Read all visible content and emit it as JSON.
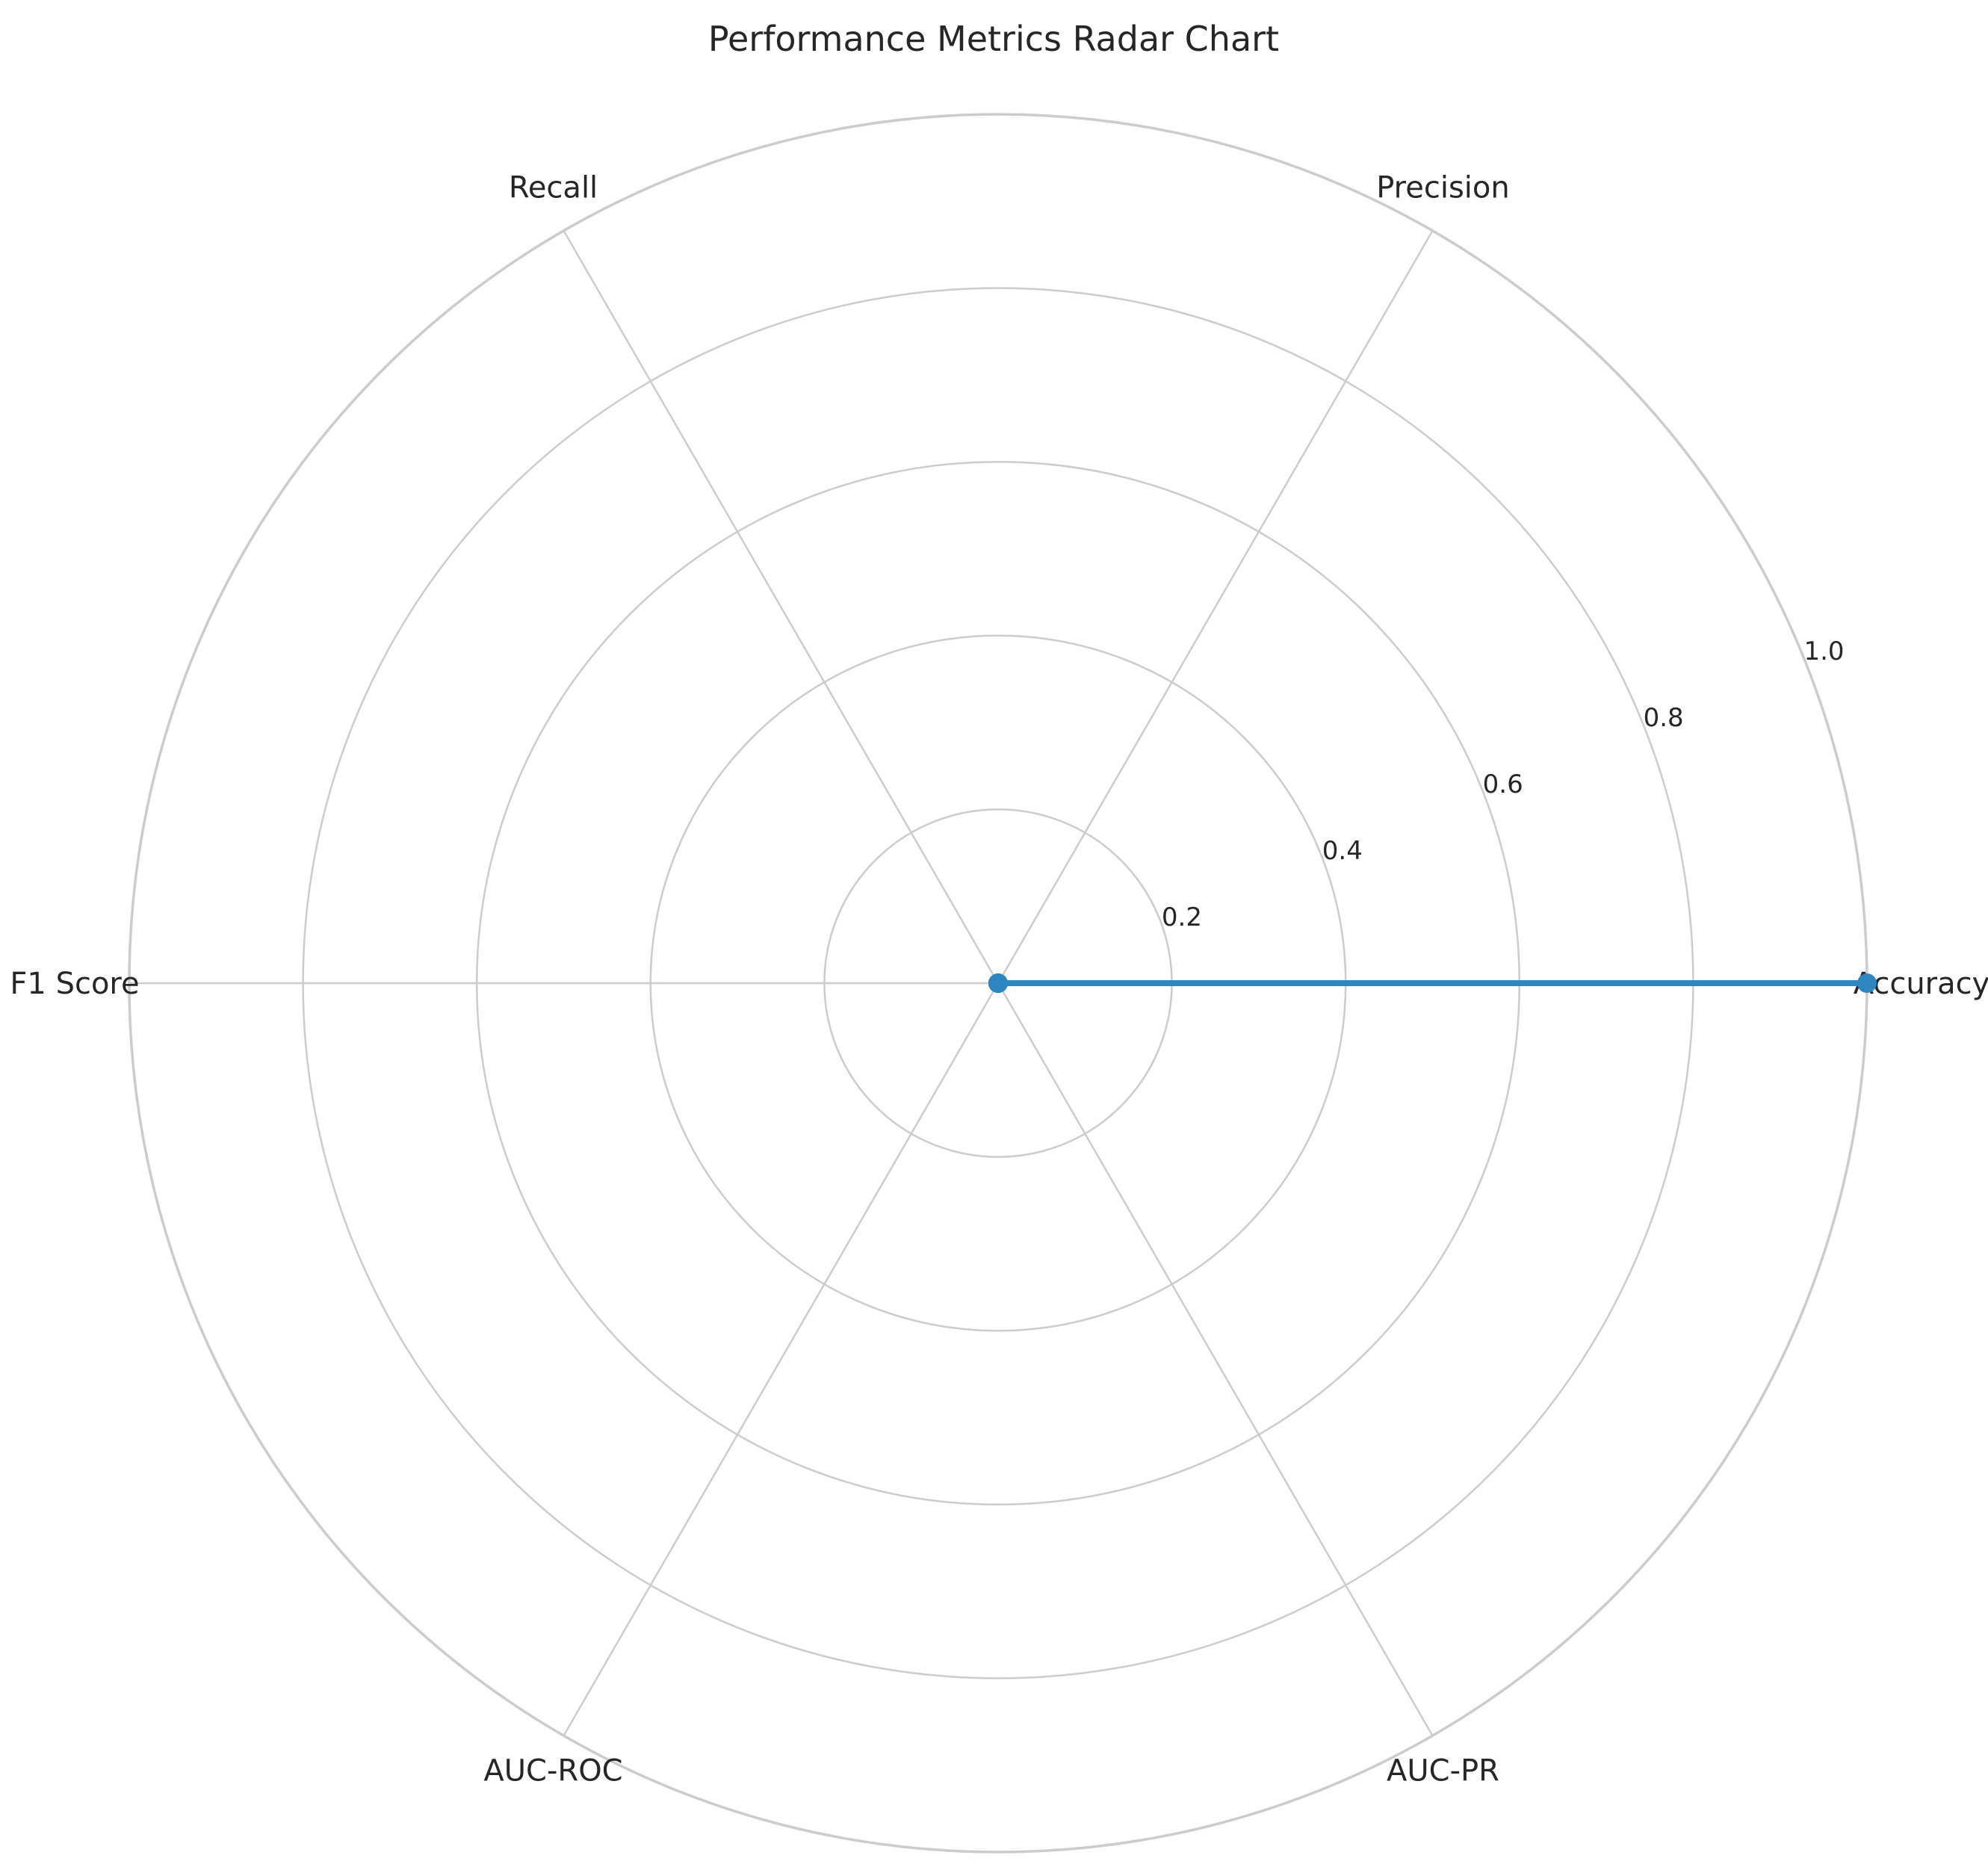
{
  "chart_data": {
    "type": "radar",
    "title": "Performance Metrics Radar Chart",
    "categories": [
      "Accuracy",
      "Precision",
      "Recall",
      "F1 Score",
      "AUC-ROC",
      "AUC-PR"
    ],
    "series": [
      {
        "values": [
          1.0,
          0.0,
          0.0,
          0.0,
          0.0,
          0.0
        ],
        "color": "#2e86c1"
      }
    ],
    "rlim": [
      0,
      1.0
    ],
    "r_ticks": [
      "0.2",
      "0.4",
      "0.6",
      "0.8",
      "1.0"
    ],
    "r_tick_values": [
      0.2,
      0.4,
      0.6,
      0.8,
      1.0
    ],
    "grid": true,
    "grid_color": "#cccccc",
    "legend": false
  }
}
